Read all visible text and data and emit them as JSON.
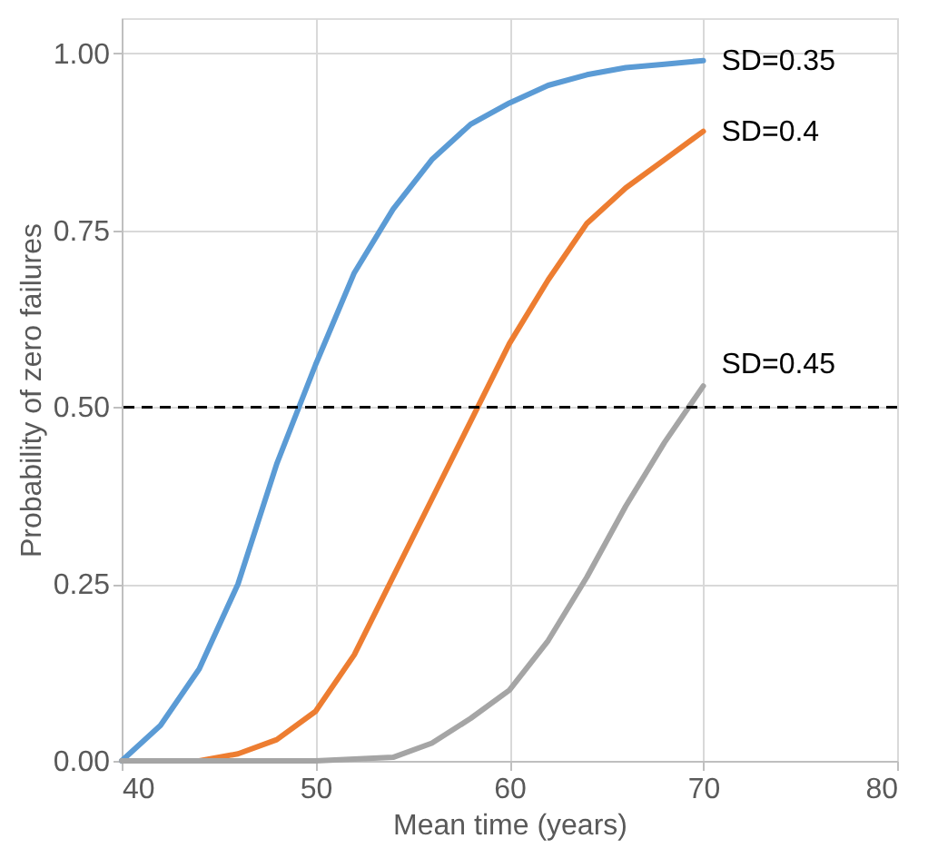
{
  "chart_data": {
    "type": "line",
    "xlabel": "Mean time (years)",
    "ylabel": "Probability of zero failures",
    "xlim": [
      40,
      80
    ],
    "xticks": [
      40,
      50,
      60,
      70,
      80
    ],
    "ylim": [
      0,
      1.05
    ],
    "yticks": [
      {
        "value": 0,
        "label": "0.00"
      },
      {
        "value": 0.25,
        "label": "0.25"
      },
      {
        "value": 0.5,
        "label": "0.50"
      },
      {
        "value": 0.75,
        "label": "0.75"
      },
      {
        "value": 1,
        "label": "1.00"
      }
    ],
    "grid": true,
    "legend": false,
    "marker": "none",
    "line_style": "solid",
    "ref_lines": [
      {
        "axis": "y",
        "value": 0.5,
        "color": "#000000",
        "line_style": "dashed"
      }
    ],
    "series": [
      {
        "name": "SD=0.35",
        "color": "#5b9bd5",
        "x": [
          40,
          42,
          44,
          46,
          48,
          50,
          52,
          54,
          56,
          58,
          60,
          62,
          64,
          66,
          68,
          70
        ],
        "values": [
          0,
          0.05,
          0.13,
          0.25,
          0.42,
          0.56,
          0.69,
          0.78,
          0.85,
          0.9,
          0.93,
          0.955,
          0.97,
          0.98,
          0.985,
          0.99
        ]
      },
      {
        "name": "SD=0.4",
        "color": "#ed7d31",
        "x": [
          44,
          46,
          48,
          50,
          52,
          54,
          56,
          58,
          60,
          62,
          64,
          66,
          68,
          70
        ],
        "values": [
          0,
          0.01,
          0.03,
          0.07,
          0.15,
          0.26,
          0.37,
          0.48,
          0.59,
          0.68,
          0.76,
          0.81,
          0.85,
          0.89
        ]
      },
      {
        "name": "SD=0.45",
        "color": "#a5a5a5",
        "x": [
          40,
          50,
          54,
          56,
          58,
          60,
          62,
          64,
          66,
          68,
          70
        ],
        "values": [
          0,
          0,
          0.005,
          0.025,
          0.06,
          0.1,
          0.17,
          0.26,
          0.36,
          0.45,
          0.53
        ]
      }
    ]
  }
}
